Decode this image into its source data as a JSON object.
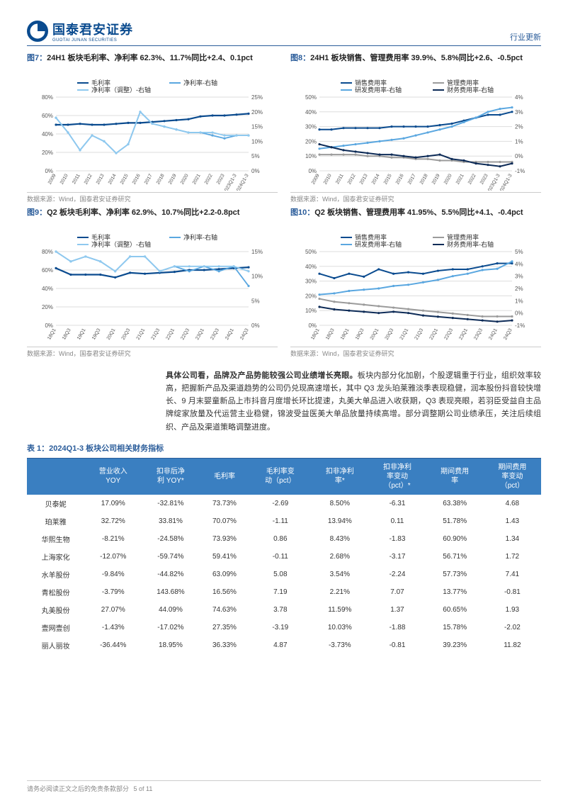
{
  "brand": {
    "cn": "国泰君安证券",
    "en": "GUOTAI JUNAN SECURITIES"
  },
  "section_label": "行业更新",
  "charts": {
    "fig7": {
      "num": "图7：",
      "title": "24H1 板块毛利率、净利率 62.3%、11.7%同比+2.4、0.1pct",
      "type": "line",
      "categories": [
        "2009",
        "2010",
        "2011",
        "2012",
        "2013",
        "2014",
        "2015",
        "2016",
        "2017",
        "2018",
        "2019",
        "2020",
        "2021",
        "2022",
        "2023",
        "2023Q1-3",
        "2024Q1-3"
      ],
      "series": [
        {
          "name": "毛利率",
          "axis": "L",
          "color": "#0a4b8f",
          "width": 2.2,
          "values": [
            50,
            50,
            51,
            50,
            50,
            51,
            52,
            52,
            53,
            54,
            55,
            56,
            59,
            60,
            60,
            61,
            62
          ]
        },
        {
          "name": "净利率-右轴",
          "axis": "R",
          "color": "#5aa7e0",
          "width": 1.8,
          "values": [
            18,
            13,
            7,
            12,
            10,
            6,
            9,
            20,
            16,
            15,
            14,
            13,
            13,
            12,
            11,
            12,
            12
          ]
        },
        {
          "name": "净利率（调整）-右轴",
          "axis": "R",
          "color": "#8fc9ef",
          "width": 1.8,
          "values": [
            18,
            13,
            7,
            12,
            10,
            6,
            9,
            20,
            16,
            15,
            14,
            13,
            13,
            13,
            12,
            12,
            12
          ]
        }
      ],
      "yL": {
        "min": 0,
        "max": 80,
        "step": 20,
        "fmt": "%"
      },
      "yR": {
        "min": 0,
        "max": 25,
        "step": 5,
        "fmt": "%"
      },
      "grid_color": "#dddddd",
      "source": "数据来源：Wind，国泰君安证券研究"
    },
    "fig8": {
      "num": "图8：",
      "title": "24H1 板块销售、管理费用率 39.9%、5.8%同比+2.6、-0.5pct",
      "type": "line",
      "categories": [
        "2009",
        "2010",
        "2011",
        "2012",
        "2013",
        "2014",
        "2015",
        "2016",
        "2017",
        "2018",
        "2019",
        "2020",
        "2021",
        "2022",
        "2023",
        "2023Q1-3",
        "2024Q1-3"
      ],
      "series": [
        {
          "name": "销售费用率",
          "axis": "L",
          "color": "#0a4b8f",
          "width": 2.0,
          "values": [
            28,
            28,
            29,
            29,
            29,
            29,
            30,
            30,
            30,
            30,
            31,
            32,
            34,
            36,
            38,
            38,
            40
          ]
        },
        {
          "name": "管理费用率",
          "axis": "L",
          "color": "#9b9b9b",
          "width": 2.0,
          "values": [
            11,
            11,
            11,
            11,
            10,
            10,
            9,
            9,
            8,
            8,
            7,
            7,
            6,
            6,
            6,
            6,
            6
          ]
        },
        {
          "name": "研发费用率-右轴",
          "axis": "R",
          "color": "#5aa7e0",
          "width": 2.0,
          "values": [
            0.5,
            0.6,
            0.7,
            0.8,
            0.9,
            1.0,
            1.1,
            1.2,
            1.4,
            1.6,
            1.8,
            2.0,
            2.3,
            2.6,
            3.0,
            3.2,
            3.3
          ]
        },
        {
          "name": "财务费用率-右轴",
          "axis": "R",
          "color": "#0d2b57",
          "width": 2.0,
          "values": [
            0.8,
            0.6,
            0.4,
            0.3,
            0.2,
            0.1,
            0.1,
            0.0,
            -0.1,
            0.0,
            0.1,
            -0.2,
            -0.3,
            -0.5,
            -0.6,
            -0.7,
            -0.5
          ]
        }
      ],
      "yL": {
        "min": 0,
        "max": 50,
        "step": 10,
        "fmt": "%"
      },
      "yR": {
        "min": -1,
        "max": 4,
        "step": 1,
        "fmt": "%"
      },
      "grid_color": "#dddddd",
      "source": "数据来源：Wind，国泰君安证券研究"
    },
    "fig9": {
      "num": "图9：",
      "title": "Q2 板块毛利率、净利率 62.9%、10.7%同比+2.2-0.8pct",
      "type": "line",
      "categories": [
        "18Q1",
        "18Q3",
        "19Q1",
        "19Q3",
        "20Q1",
        "20Q3",
        "21Q1",
        "21Q3",
        "22Q1",
        "22Q3",
        "23Q1",
        "23Q3",
        "24Q1",
        "24Q3"
      ],
      "series": [
        {
          "name": "毛利率",
          "axis": "L",
          "color": "#0a4b8f",
          "width": 2.2,
          "values": [
            62,
            55,
            55,
            55,
            52,
            57,
            56,
            57,
            58,
            60,
            60,
            61,
            62,
            63
          ]
        },
        {
          "name": "净利率-右轴",
          "axis": "R",
          "color": "#5aa7e0",
          "width": 1.8,
          "values": [
            15,
            13,
            14,
            13,
            11,
            14,
            14,
            11,
            12,
            11,
            12,
            11,
            12,
            8
          ]
        },
        {
          "name": "净利率（调整）-右轴",
          "axis": "R",
          "color": "#8fc9ef",
          "width": 1.8,
          "values": [
            15,
            13,
            14,
            13,
            11,
            14,
            14,
            11,
            12,
            12,
            12,
            12,
            12,
            11
          ]
        }
      ],
      "yL": {
        "min": 0,
        "max": 80,
        "step": 20,
        "fmt": "%"
      },
      "yR": {
        "min": 0,
        "max": 15,
        "step": 5,
        "fmt": "%"
      },
      "grid_color": "#dddddd",
      "source": "数据来源：Wind，国泰君安证券研究"
    },
    "fig10": {
      "num": "图10：",
      "title": "Q2 板块销售、管理费用率 41.95%、5.5%同比+4.1、-0.4pct",
      "type": "line",
      "categories": [
        "18Q1",
        "18Q3",
        "19Q1",
        "19Q3",
        "20Q1",
        "20Q3",
        "21Q1",
        "21Q3",
        "22Q1",
        "22Q3",
        "23Q1",
        "23Q3",
        "24Q1",
        "24Q3"
      ],
      "series": [
        {
          "name": "销售费用率",
          "axis": "L",
          "color": "#0a4b8f",
          "width": 2.0,
          "values": [
            35,
            32,
            35,
            33,
            38,
            35,
            36,
            35,
            37,
            38,
            38,
            40,
            42,
            42
          ]
        },
        {
          "name": "管理费用率",
          "axis": "L",
          "color": "#9b9b9b",
          "width": 2.0,
          "values": [
            18,
            16,
            15,
            14,
            13,
            12,
            11,
            10,
            9,
            8,
            7,
            6,
            6,
            6
          ]
        },
        {
          "name": "研发费用率-右轴",
          "axis": "R",
          "color": "#5aa7e0",
          "width": 2.0,
          "values": [
            1.5,
            1.6,
            1.8,
            1.9,
            2.0,
            2.2,
            2.3,
            2.5,
            2.7,
            3.0,
            3.2,
            3.5,
            3.6,
            4.2
          ]
        },
        {
          "name": "财务费用率-右轴",
          "axis": "R",
          "color": "#0d2b57",
          "width": 2.0,
          "values": [
            0.5,
            0.3,
            0.2,
            0.1,
            0.0,
            0.1,
            0.0,
            -0.2,
            -0.3,
            -0.4,
            -0.5,
            -0.6,
            -0.7,
            -0.6
          ]
        }
      ],
      "yL": {
        "min": 0,
        "max": 50,
        "step": 10,
        "fmt": "%"
      },
      "yR": {
        "min": -1,
        "max": 5,
        "step": 1,
        "fmt": "%"
      },
      "grid_color": "#dddddd",
      "source": "数据来源：Wind，国泰君安证券研究"
    }
  },
  "paragraph": {
    "lead": "具体公司看，品牌及产品势能较强公司业绩增长亮眼。",
    "rest": "板块内部分化加剧，个股逻辑重于行业，组织效率较高，把握新产品及渠道趋势的公司仍兑现高速增长，其中 Q3 龙头珀莱雅淡季表现稳健，润本股份抖音较快增长、9 月末婴童新品上市抖音月度增长环比提速，丸美大单品进入收获期，Q3 表现亮眼，若羽臣受益自主品牌绽家放量及代运营主业稳健，锦波受益医美大单品放量持续高增。部分调整期公司业绩承压，关注后续组织、产品及渠道策略调整进度。"
  },
  "table": {
    "title": "表 1：2024Q1-3 板块公司相关财务指标",
    "header_bg": "#3a7fc1",
    "header_fg": "#ffffff",
    "columns": [
      "",
      "营业收入\nYOY",
      "扣非后净\n利 YOY*",
      "毛利率",
      "毛利率变\n动（pct）",
      "扣非净利\n率*",
      "扣非净利\n率变动\n（pct）*",
      "期间费用\n率",
      "期间费用\n率变动\n（pct）"
    ],
    "rows": [
      [
        "贝泰妮",
        "17.09%",
        "-32.81%",
        "73.73%",
        "-2.69",
        "8.50%",
        "-6.31",
        "63.38%",
        "4.68"
      ],
      [
        "珀莱雅",
        "32.72%",
        "33.81%",
        "70.07%",
        "-1.11",
        "13.94%",
        "0.11",
        "51.78%",
        "1.43"
      ],
      [
        "华熙生物",
        "-8.21%",
        "-24.58%",
        "73.93%",
        "0.86",
        "8.43%",
        "-1.83",
        "60.90%",
        "1.34"
      ],
      [
        "上海家化",
        "-12.07%",
        "-59.74%",
        "59.41%",
        "-0.11",
        "2.68%",
        "-3.17",
        "56.71%",
        "1.72"
      ],
      [
        "水羊股份",
        "-9.84%",
        "-44.82%",
        "63.09%",
        "5.08",
        "3.54%",
        "-2.24",
        "57.73%",
        "7.41"
      ],
      [
        "青松股份",
        "-3.79%",
        "143.68%",
        "16.56%",
        "7.19",
        "2.21%",
        "7.07",
        "13.77%",
        "-0.81"
      ],
      [
        "丸美股份",
        "27.07%",
        "44.09%",
        "74.63%",
        "3.78",
        "11.59%",
        "1.37",
        "60.65%",
        "1.93"
      ],
      [
        "壹网壹创",
        "-1.43%",
        "-17.02%",
        "27.35%",
        "-3.19",
        "10.03%",
        "-1.88",
        "15.78%",
        "-2.02"
      ],
      [
        "丽人丽妆",
        "-36.44%",
        "18.95%",
        "36.33%",
        "4.87",
        "-3.73%",
        "-0.81",
        "39.23%",
        "11.82"
      ]
    ]
  },
  "footer": {
    "text": "请务必阅读正文之后的免责条款部分",
    "page": "5 of 11"
  }
}
